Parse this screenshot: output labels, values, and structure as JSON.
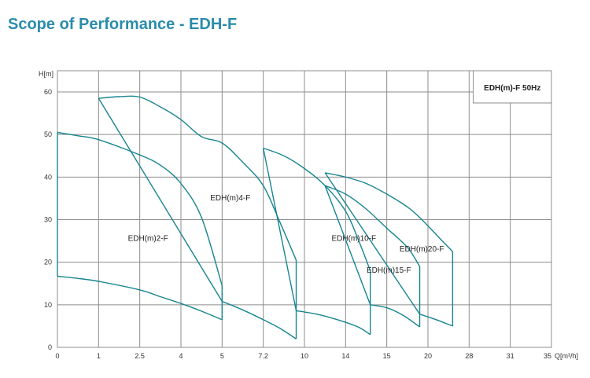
{
  "header": {
    "title": "Scope of Performance - EDH-F"
  },
  "colors": {
    "title": "#2a8cab",
    "curve": "#17858f",
    "grid": "#8c8c8c"
  },
  "chart_data": {
    "type": "line",
    "title": "Scope of Performance - EDH-F",
    "ylabel": "H[m]",
    "xlabel": "Q[m³/h]",
    "ylim": [
      0,
      60
    ],
    "y_ticks": [
      0,
      10,
      20,
      30,
      40,
      50,
      60
    ],
    "x_ticks": [
      "0",
      "1",
      "2.5",
      "4",
      "5",
      "7.2",
      "10",
      "14",
      "15",
      "20",
      "28",
      "31",
      "35"
    ],
    "grid": true,
    "legend": {
      "text": "EDH(m)-F  50Hz",
      "placement": "top-right"
    },
    "series": [
      {
        "name": "EDH(m)2-F",
        "label_at": [
          2.2,
          25
        ],
        "upper": [
          [
            0,
            50.5
          ],
          [
            0.5,
            49.7
          ],
          [
            1,
            48.8
          ],
          [
            2,
            45.2
          ],
          [
            2.5,
            42.8
          ],
          [
            3,
            38.5
          ],
          [
            3.5,
            30.5
          ],
          [
            4,
            14.5
          ]
        ],
        "lower": [
          [
            0,
            16.7
          ],
          [
            0.5,
            16.2
          ],
          [
            1,
            15.5
          ],
          [
            2,
            13.5
          ],
          [
            2.5,
            11.9
          ],
          [
            3,
            10.3
          ],
          [
            3.5,
            8.5
          ],
          [
            4,
            6.5
          ]
        ]
      },
      {
        "name": "EDH(m)4-F",
        "label_at": [
          4.2,
          34.5
        ],
        "upper": [
          [
            1,
            58.5
          ],
          [
            1.5,
            58.9
          ],
          [
            2,
            58.8
          ],
          [
            2.5,
            56.5
          ],
          [
            3,
            53.5
          ],
          [
            3.5,
            49.5
          ],
          [
            4,
            48
          ],
          [
            4.5,
            43.5
          ],
          [
            5,
            38
          ],
          [
            5.4,
            29.5
          ],
          [
            5.8,
            20.5
          ]
        ],
        "lower": [
          [
            4,
            10.8
          ],
          [
            4.5,
            8.8
          ],
          [
            5,
            6.5
          ],
          [
            5.4,
            4.5
          ],
          [
            5.8,
            2
          ]
        ]
      },
      {
        "name": "EDH(m)10-F",
        "label_at": [
          7.2,
          25
        ],
        "upper": [
          [
            5,
            46.8
          ],
          [
            5.5,
            45
          ],
          [
            6,
            42
          ],
          [
            6.5,
            38
          ],
          [
            7,
            32
          ],
          [
            7.3,
            25.5
          ],
          [
            7.6,
            18
          ]
        ],
        "lower": [
          [
            5.8,
            8.6
          ],
          [
            6.3,
            7.8
          ],
          [
            6.8,
            6.5
          ],
          [
            7.3,
            4.8
          ],
          [
            7.6,
            3
          ]
        ]
      },
      {
        "name": "EDH(m)15-F",
        "label_at": [
          8.05,
          17.5
        ],
        "upper": [
          [
            6.5,
            38
          ],
          [
            7,
            36
          ],
          [
            7.5,
            32.5
          ],
          [
            8,
            28
          ],
          [
            8.5,
            23.5
          ],
          [
            8.8,
            19
          ]
        ],
        "lower": [
          [
            7.6,
            10
          ],
          [
            8,
            9.3
          ],
          [
            8.4,
            7.5
          ],
          [
            8.8,
            4.8
          ]
        ]
      },
      {
        "name": "EDH(m)20-F",
        "label_at": [
          8.85,
          22.5
        ],
        "upper": [
          [
            6.5,
            41
          ],
          [
            7,
            40
          ],
          [
            7.5,
            38.5
          ],
          [
            8,
            36
          ],
          [
            8.5,
            33
          ],
          [
            8.8,
            30.5
          ],
          [
            9.2,
            26.5
          ],
          [
            9.6,
            22.5
          ]
        ],
        "lower": [
          [
            8.8,
            7.8
          ],
          [
            9.2,
            6.5
          ],
          [
            9.6,
            5
          ]
        ]
      }
    ]
  }
}
